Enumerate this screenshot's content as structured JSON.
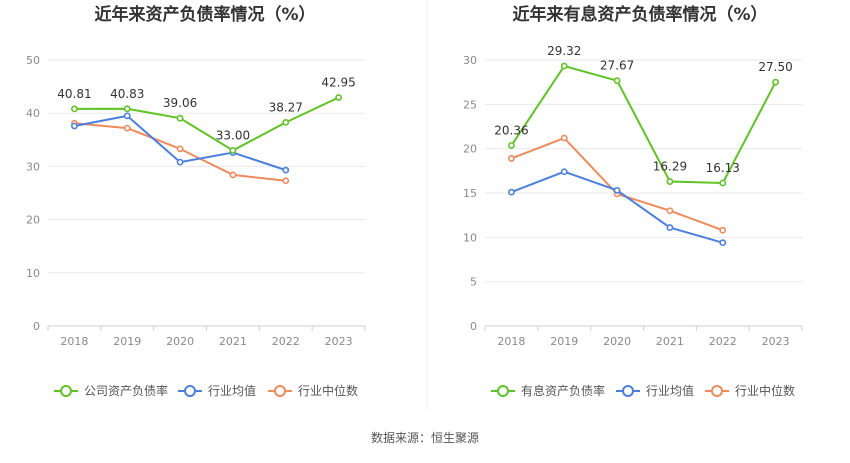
{
  "source": "数据来源：恒生聚源",
  "colors": {
    "company": "#5fc323",
    "industry_avg": "#4a7fe0",
    "industry_median": "#f08a5d"
  },
  "chart_data": [
    {
      "type": "line",
      "title": "近年来资产负债率情况（%）",
      "x": [
        "2018",
        "2019",
        "2020",
        "2021",
        "2022",
        "2023"
      ],
      "ylim": [
        0,
        50
      ],
      "yticks": [
        0,
        10,
        20,
        30,
        40,
        50
      ],
      "grid": true,
      "legend": "bottom",
      "series": [
        {
          "name": "公司资产负债率",
          "values": [
            40.81,
            40.83,
            39.06,
            33.0,
            38.27,
            42.95
          ],
          "labels": [
            "40.81",
            "40.83",
            "39.06",
            "33.00",
            "38.27",
            "42.95"
          ]
        },
        {
          "name": "行业均值",
          "values": [
            37.6,
            39.5,
            30.8,
            32.6,
            29.3,
            null
          ]
        },
        {
          "name": "行业中位数",
          "values": [
            38.1,
            37.2,
            33.3,
            28.4,
            27.3,
            null
          ]
        }
      ]
    },
    {
      "type": "line",
      "title": "近年来有息资产负债率情况（%）",
      "x": [
        "2018",
        "2019",
        "2020",
        "2021",
        "2022",
        "2023"
      ],
      "ylim": [
        0,
        30
      ],
      "yticks": [
        0,
        5,
        10,
        15,
        20,
        25,
        30
      ],
      "grid": true,
      "legend": "bottom",
      "series": [
        {
          "name": "有息资产负债率",
          "values": [
            20.36,
            29.32,
            27.67,
            16.29,
            16.13,
            27.5
          ],
          "labels": [
            "20.36",
            "29.32",
            "27.67",
            "16.29",
            "16.13",
            "27.50"
          ]
        },
        {
          "name": "行业均值",
          "values": [
            15.1,
            17.4,
            15.3,
            11.1,
            9.4,
            null
          ]
        },
        {
          "name": "行业中位数",
          "values": [
            18.9,
            21.2,
            14.9,
            13.0,
            10.8,
            null
          ]
        }
      ]
    }
  ]
}
